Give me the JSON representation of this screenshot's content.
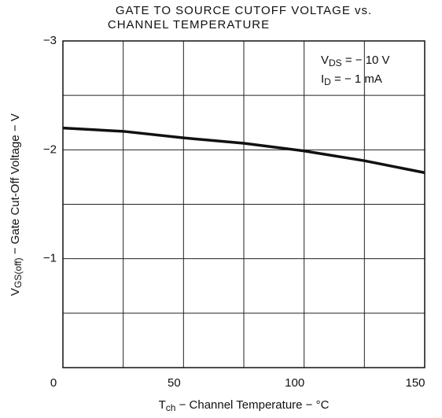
{
  "chart_data": {
    "type": "line",
    "title": [
      "GATE TO SOURCE CUTOFF VOLTAGE vs.",
      "CHANNEL TEMPERATURE"
    ],
    "x_label": [
      "T",
      "ch",
      " − Channel Temperature − °C"
    ],
    "y_label": [
      "V",
      "GS(off)",
      " − Gate Cut-Off Voltage − V"
    ],
    "annotations": [
      [
        "V",
        "DS",
        " = − 10 V"
      ],
      [
        "I",
        "D",
        " = − 1 mA"
      ]
    ],
    "x": [
      0,
      25,
      50,
      75,
      100,
      125,
      150
    ],
    "series": [
      {
        "color": "#111111",
        "values": [
          -2.2,
          -2.17,
          -2.11,
          -2.06,
          -1.99,
          -1.9,
          -1.79
        ]
      }
    ],
    "xlim": [
      0,
      150
    ],
    "xticks": [
      0,
      50,
      100,
      150
    ],
    "xminor": [
      25,
      75,
      125
    ],
    "ylim": [
      0,
      -3
    ],
    "yticks": [
      {
        "value": -3,
        "label": "−3"
      },
      {
        "value": -2,
        "label": "−2"
      },
      {
        "value": -1,
        "label": "−1"
      }
    ],
    "yminor": [
      -2.5,
      -1.5,
      -0.5
    ],
    "grid": true
  }
}
